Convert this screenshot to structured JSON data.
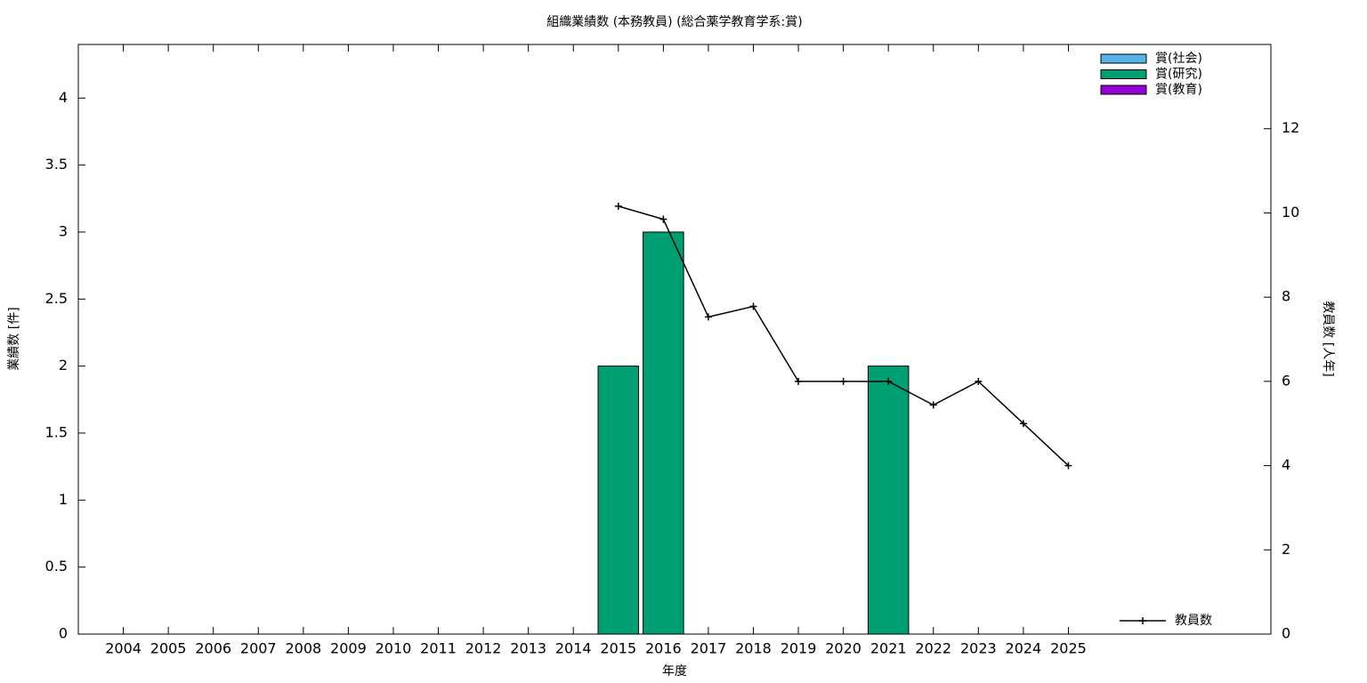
{
  "chart_data": {
    "type": "bar",
    "title": "組織業績数 (本務教員) (総合薬学教育学系:賞)",
    "x_label": "年度",
    "y_label": "業績数 [件]",
    "y2_label": "教員数 [人年]",
    "x": [
      2004,
      2005,
      2006,
      2007,
      2008,
      2009,
      2010,
      2011,
      2012,
      2013,
      2014,
      2015,
      2016,
      2017,
      2018,
      2019,
      2020,
      2021,
      2022,
      2023,
      2024,
      2025
    ],
    "xlim": [
      2003,
      2029.5
    ],
    "xticks": [
      2004,
      2005,
      2006,
      2007,
      2008,
      2009,
      2010,
      2011,
      2012,
      2013,
      2014,
      2015,
      2016,
      2017,
      2018,
      2019,
      2020,
      2021,
      2022,
      2023,
      2024,
      2025
    ],
    "ylim": [
      0,
      4.4
    ],
    "yticks": [
      0,
      0.5,
      1,
      1.5,
      2,
      2.5,
      3,
      3.5,
      4
    ],
    "y2lim": [
      0,
      14
    ],
    "y2ticks": [
      0,
      2,
      4,
      6,
      8,
      10,
      12
    ],
    "stacked": true,
    "grid": false,
    "legend": "top-right",
    "series": [
      {
        "name": "賞(社会)",
        "color": "#56b4e9",
        "type": "bar",
        "values": [
          0,
          0,
          0,
          0,
          0,
          0,
          0,
          0,
          0,
          0,
          0,
          0,
          0,
          0,
          0,
          0,
          0,
          0,
          0,
          0,
          0,
          0
        ]
      },
      {
        "name": "賞(研究)",
        "color": "#009e73",
        "type": "bar",
        "values": [
          0,
          0,
          0,
          0,
          0,
          0,
          0,
          0,
          0,
          0,
          0,
          2,
          3,
          0,
          0,
          0,
          0,
          2,
          0,
          0,
          0,
          0
        ]
      },
      {
        "name": "賞(教育)",
        "color": "#9400d3",
        "type": "bar",
        "values": [
          0,
          0,
          0,
          0,
          0,
          0,
          0,
          0,
          0,
          0,
          0,
          0,
          0,
          0,
          0,
          0,
          0,
          0,
          0,
          0,
          0,
          0
        ]
      },
      {
        "name": "教員数",
        "color": "#000000",
        "type": "line",
        "axis": "y2",
        "values": [
          null,
          null,
          null,
          null,
          null,
          null,
          null,
          null,
          null,
          null,
          null,
          10.16,
          9.85,
          7.53,
          7.78,
          6,
          6,
          6,
          5.44,
          6,
          5,
          4
        ]
      }
    ]
  }
}
